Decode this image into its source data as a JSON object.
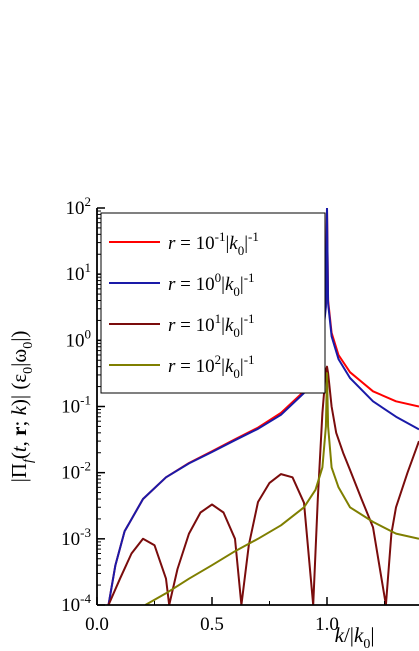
{
  "chart_data": {
    "type": "line",
    "xlabel": "k/|k0|",
    "ylabel": "|Πf(t, r; k)| (ε0|ω0|)",
    "x_scale": "linear",
    "y_scale": "log",
    "xlim": [
      0.0,
      1.4
    ],
    "ylim": [
      0.0001,
      100
    ],
    "grid": false,
    "legend_position": "top-left",
    "x_ticks": [
      "0.0",
      "0.5",
      "1.0"
    ],
    "y_ticks": [
      {
        "base": "10",
        "exp": "2"
      },
      {
        "base": "10",
        "exp": "1"
      },
      {
        "base": "10",
        "exp": "0"
      },
      {
        "base": "10",
        "exp": "-1"
      },
      {
        "base": "10",
        "exp": "-2"
      },
      {
        "base": "10",
        "exp": "-3"
      },
      {
        "base": "10",
        "exp": "-4"
      }
    ],
    "series": [
      {
        "name": "r = 10^-1|k0|^-1",
        "r_exp": "-1",
        "color": "#ff0000",
        "x": [
          0.05,
          0.08,
          0.12,
          0.2,
          0.3,
          0.4,
          0.5,
          0.6,
          0.7,
          0.8,
          0.9,
          0.95,
          0.98,
          0.995,
          1.0,
          1.005,
          1.02,
          1.05,
          1.1,
          1.2,
          1.3,
          1.4
        ],
        "y": [
          0.0001,
          0.0004,
          0.0013,
          0.004,
          0.0085,
          0.014,
          0.021,
          0.032,
          0.048,
          0.08,
          0.17,
          0.4,
          1.1,
          3.5,
          100,
          4.0,
          1.3,
          0.6,
          0.33,
          0.17,
          0.12,
          0.1
        ]
      },
      {
        "name": "r = 10^0|k0|^-1",
        "r_exp": "0",
        "color": "#1a1aa8",
        "x": [
          0.05,
          0.08,
          0.12,
          0.2,
          0.3,
          0.4,
          0.5,
          0.6,
          0.7,
          0.8,
          0.9,
          0.95,
          0.98,
          0.995,
          1.0,
          1.005,
          1.02,
          1.05,
          1.1,
          1.2,
          1.3,
          1.4
        ],
        "y": [
          0.0001,
          0.0004,
          0.0013,
          0.004,
          0.0085,
          0.0138,
          0.0205,
          0.031,
          0.046,
          0.075,
          0.16,
          0.37,
          1.0,
          3.2,
          100,
          3.6,
          1.15,
          0.52,
          0.27,
          0.12,
          0.07,
          0.045
        ]
      },
      {
        "name": "r = 10^1|k0|^-1",
        "r_exp": "1",
        "color": "#7a0c0c",
        "x": [
          0.05,
          0.1,
          0.15,
          0.2,
          0.25,
          0.3,
          0.314,
          0.35,
          0.4,
          0.45,
          0.5,
          0.55,
          0.6,
          0.628,
          0.66,
          0.7,
          0.75,
          0.8,
          0.85,
          0.9,
          0.94,
          0.96,
          0.98,
          0.995,
          1.0,
          1.005,
          1.02,
          1.04,
          1.07,
          1.1,
          1.15,
          1.2,
          1.256,
          1.28,
          1.3,
          1.35,
          1.4
        ],
        "y": [
          0.0001,
          0.00025,
          0.0006,
          0.001,
          0.0008,
          0.00025,
          0.0001,
          0.00035,
          0.0012,
          0.0025,
          0.0033,
          0.0025,
          0.001,
          0.0001,
          0.0008,
          0.0036,
          0.007,
          0.0095,
          0.0085,
          0.0035,
          0.0001,
          0.004,
          0.08,
          0.35,
          0.4,
          0.32,
          0.1,
          0.04,
          0.02,
          0.011,
          0.004,
          0.0015,
          0.0001,
          0.0012,
          0.003,
          0.01,
          0.03
        ]
      },
      {
        "name": "r = 10^2|k0|^-1",
        "r_exp": "2",
        "color": "#7f7f00",
        "x": [
          0.21,
          0.3,
          0.4,
          0.5,
          0.6,
          0.7,
          0.8,
          0.9,
          0.95,
          0.98,
          0.995,
          1.0,
          1.005,
          1.02,
          1.05,
          1.1,
          1.2,
          1.3,
          1.4
        ],
        "y": [
          0.0001,
          0.00015,
          0.00025,
          0.0004,
          0.00065,
          0.001,
          0.0016,
          0.003,
          0.0055,
          0.012,
          0.05,
          0.32,
          0.05,
          0.012,
          0.006,
          0.003,
          0.0018,
          0.0012,
          0.001
        ]
      }
    ]
  }
}
